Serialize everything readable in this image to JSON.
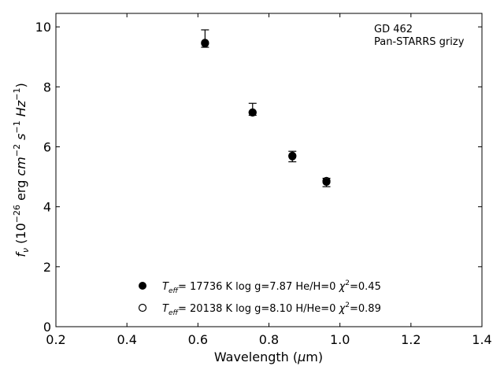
{
  "chart_data": {
    "type": "scatter",
    "annotation": [
      "GD 462",
      "Pan-STARRS grizy"
    ],
    "xlabel": "Wavelength (μm)",
    "xlabel_parts": {
      "pre": "Wavelength (",
      "sym": "μ",
      "post": "m)"
    },
    "ylabel": "fν (10⁻²⁶ erg cm⁻² s⁻¹ Hz⁻¹)",
    "ylabel_parts": {
      "f": "f",
      "nu": "ν",
      "open": " (10",
      "e1": "−26",
      "erg": " erg ",
      "cm": "cm",
      "e2": "−2",
      "s": " s",
      "e3": "−1",
      "hz": " Hz",
      "e4": "−1",
      "close": ")"
    },
    "xlim": [
      0.2,
      1.4
    ],
    "ylim": [
      0,
      10.45
    ],
    "xticks": [
      0.2,
      0.4,
      0.6,
      0.8,
      1.0,
      1.2,
      1.4
    ],
    "xtick_labels": [
      "0.2",
      "0.4",
      "0.6",
      "0.8",
      "1.0",
      "1.2",
      "1.4"
    ],
    "yticks": [
      0,
      2,
      4,
      6,
      8,
      10
    ],
    "ytick_labels": [
      "0",
      "2",
      "4",
      "6",
      "8",
      "10"
    ],
    "grid": false,
    "legend_position": "bottom-center",
    "observed": {
      "x": [
        0.62,
        0.754,
        0.866,
        0.962
      ],
      "y": [
        9.5,
        7.15,
        5.7,
        4.85
      ],
      "err_low": [
        0.18,
        0.1,
        0.2,
        0.18
      ],
      "err_high": [
        0.4,
        0.3,
        0.15,
        0.1
      ]
    },
    "series": [
      {
        "marker": "filled-circle",
        "x": [
          0.62,
          0.754,
          0.866,
          0.962
        ],
        "y": [
          9.45,
          7.15,
          5.68,
          4.83
        ],
        "label_parts": {
          "t": "T",
          "sub": "eff",
          "a": "= 17736 K  log g=7.87  He/H=0  ",
          "chi": "χ",
          "sup": "2",
          "b": "=0.45"
        }
      },
      {
        "marker": "open-circle",
        "x": [
          0.62,
          0.754,
          0.866,
          0.962
        ],
        "y": [
          9.47,
          7.14,
          5.7,
          4.86
        ],
        "label_parts": {
          "t": "T",
          "sub": "eff",
          "a": "= 20138 K  log g=8.10  H/He=0  ",
          "chi": "χ",
          "sup": "2",
          "b": "=0.89"
        }
      }
    ]
  }
}
